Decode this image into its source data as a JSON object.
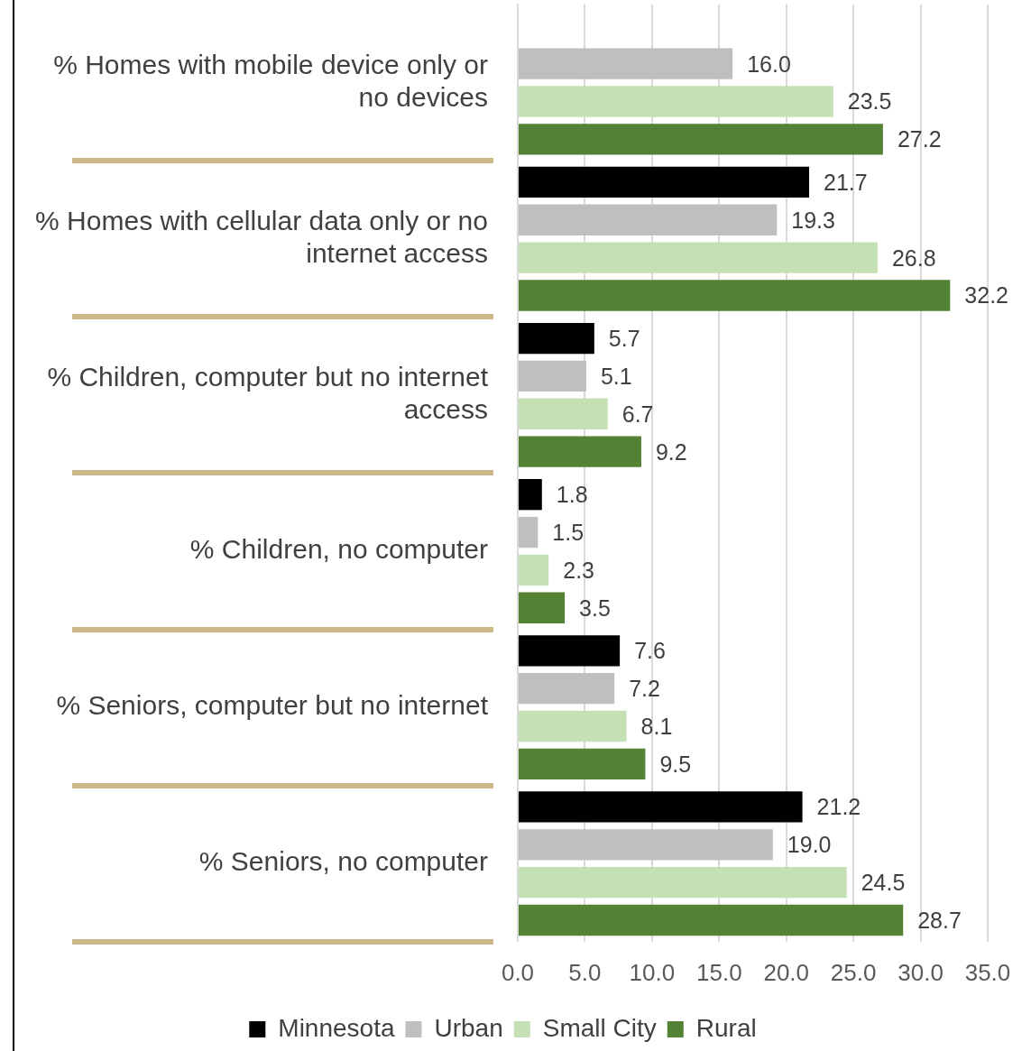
{
  "chart_data": {
    "type": "bar",
    "orientation": "horizontal",
    "categories": [
      "% Homes with mobile device only or no devices",
      "% Homes with cellular data only or no internet access",
      "% Children, computer but no internet access",
      "% Children, no computer",
      "% Seniors, computer but no internet",
      "% Seniors, no computer"
    ],
    "series": [
      {
        "name": "Minnesota",
        "color": "#000000",
        "values": [
          null,
          21.7,
          5.7,
          1.8,
          7.6,
          21.2
        ],
        "value_labels": [
          null,
          "21.7",
          "5.7",
          "1.8",
          "7.6",
          "21.2"
        ]
      },
      {
        "name": "Urban",
        "color": "#bfbfbf",
        "values": [
          16.0,
          19.3,
          5.1,
          1.5,
          7.2,
          19.0
        ],
        "value_labels": [
          "16.0",
          "19.3",
          "5.1",
          "1.5",
          "7.2",
          "19.0"
        ]
      },
      {
        "name": "Small City",
        "color": "#c5e0b4",
        "values": [
          23.5,
          26.8,
          6.7,
          2.3,
          8.1,
          24.5
        ],
        "value_labels": [
          "23.5",
          "26.8",
          "6.7",
          "2.3",
          "8.1",
          "24.5"
        ]
      },
      {
        "name": "Rural",
        "color": "#548235",
        "values": [
          27.2,
          32.2,
          9.2,
          3.5,
          9.5,
          28.7
        ],
        "value_labels": [
          "27.2",
          "32.2",
          "9.2",
          "3.5",
          "9.5",
          "28.7"
        ]
      }
    ],
    "xlim": [
      0,
      35
    ],
    "xticks": [
      {
        "value": 0,
        "label": "0.0"
      },
      {
        "value": 5,
        "label": "5.0"
      },
      {
        "value": 10,
        "label": "10.0"
      },
      {
        "value": 15,
        "label": "15.0"
      },
      {
        "value": 20,
        "label": "20.0"
      },
      {
        "value": 25,
        "label": "25.0"
      },
      {
        "value": 30,
        "label": "30.0"
      },
      {
        "value": 35,
        "label": "35.0"
      }
    ],
    "grid": "x",
    "legend": "bottom"
  }
}
